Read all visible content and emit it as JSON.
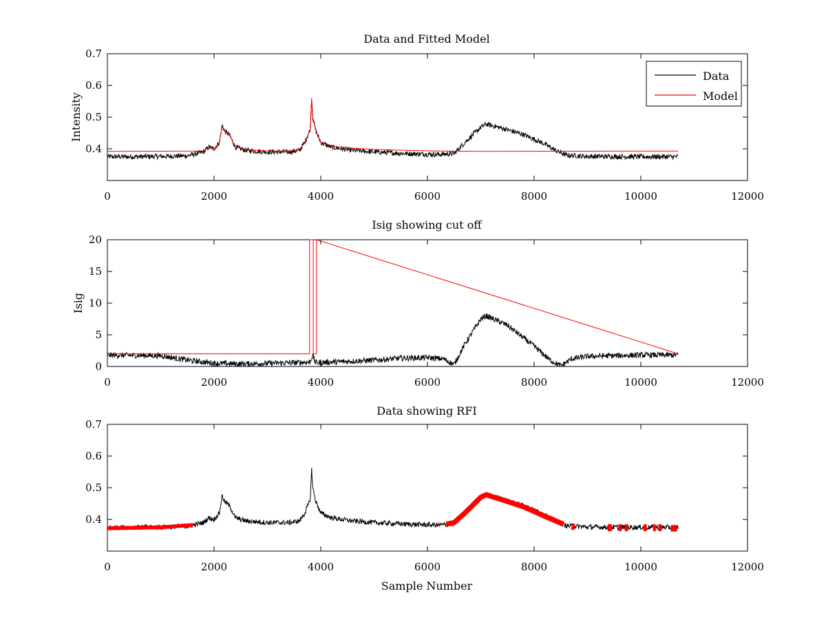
{
  "chart_data": [
    {
      "type": "line",
      "title": "Data and Fitted Model",
      "xlabel": "",
      "ylabel": "Intensity",
      "xlim": [
        0,
        12000
      ],
      "ylim": [
        0.3,
        0.7
      ],
      "xticks": [
        "0",
        "2000",
        "4000",
        "6000",
        "8000",
        "10000",
        "12000"
      ],
      "yticks": [
        "0.4",
        "0.5",
        "0.6",
        "0.7"
      ],
      "ytick_values": [
        0.4,
        0.5,
        0.6,
        0.7
      ],
      "grid": false,
      "legend_position": "top-right",
      "legend": [
        {
          "label": "Data",
          "color": "#000000"
        },
        {
          "label": "Model",
          "color": "#ff0000"
        }
      ],
      "series": [
        {
          "name": "Data",
          "color": "#000000",
          "noise": 0.008,
          "x": [
            0,
            500,
            1000,
            1500,
            1800,
            1900,
            2000,
            2100,
            2150,
            2200,
            2250,
            2300,
            2400,
            2600,
            3000,
            3400,
            3600,
            3700,
            3750,
            3800,
            3830,
            3850,
            3900,
            4000,
            4200,
            4600,
            5000,
            5600,
            6200,
            6500,
            6700,
            7000,
            7100,
            7400,
            7800,
            8200,
            8400,
            8600,
            9000,
            10000,
            10700
          ],
          "y": [
            0.375,
            0.375,
            0.376,
            0.378,
            0.39,
            0.405,
            0.4,
            0.42,
            0.475,
            0.455,
            0.45,
            0.44,
            0.405,
            0.395,
            0.39,
            0.39,
            0.395,
            0.42,
            0.44,
            0.46,
            0.56,
            0.5,
            0.46,
            0.42,
            0.405,
            0.395,
            0.39,
            0.385,
            0.382,
            0.385,
            0.42,
            0.468,
            0.478,
            0.465,
            0.445,
            0.415,
            0.395,
            0.38,
            0.376,
            0.375,
            0.375
          ]
        },
        {
          "name": "Model",
          "color": "#ff0000",
          "noise": 0,
          "x": [
            0,
            1800,
            1900,
            2000,
            2100,
            2150,
            2200,
            2250,
            2300,
            2400,
            2600,
            3000,
            3400,
            3600,
            3700,
            3750,
            3800,
            3830,
            3850,
            3900,
            4000,
            4200,
            4600,
            5000,
            5600,
            6200,
            7000,
            10700
          ],
          "y": [
            0.392,
            0.393,
            0.405,
            0.4,
            0.42,
            0.47,
            0.455,
            0.45,
            0.44,
            0.405,
            0.397,
            0.393,
            0.393,
            0.397,
            0.42,
            0.44,
            0.46,
            0.56,
            0.5,
            0.46,
            0.42,
            0.408,
            0.402,
            0.398,
            0.395,
            0.393,
            0.392,
            0.393
          ]
        }
      ]
    },
    {
      "type": "line",
      "title": "Isig showing cut off",
      "xlabel": "",
      "ylabel": "Isig",
      "xlim": [
        0,
        12000
      ],
      "ylim": [
        0,
        20
      ],
      "xticks": [
        "0",
        "2000",
        "4000",
        "6000",
        "8000",
        "10000",
        "12000"
      ],
      "yticks": [
        "0",
        "5",
        "10",
        "15",
        "20"
      ],
      "ytick_values": [
        0,
        5,
        10,
        15,
        20
      ],
      "grid": false,
      "series": [
        {
          "color": "#000000",
          "noise": 0.45,
          "x": [
            0,
            1000,
            1500,
            2000,
            2500,
            3000,
            3500,
            3800,
            3850,
            3900,
            4500,
            5000,
            5500,
            6000,
            6300,
            6500,
            6700,
            7000,
            7100,
            7500,
            8000,
            8300,
            8500,
            8700,
            9000,
            10000,
            10700
          ],
          "y": [
            1.8,
            1.7,
            1.0,
            0.5,
            0.4,
            0.5,
            0.6,
            0.7,
            1.8,
            0.6,
            0.8,
            1.0,
            1.3,
            1.4,
            1.2,
            0.3,
            3.5,
            7.5,
            8.0,
            6.5,
            3.2,
            1.0,
            0.1,
            1.2,
            1.6,
            1.8,
            1.8
          ]
        },
        {
          "color": "#ff0000",
          "noise": 0,
          "x": [
            0,
            3790,
            3790,
            3860,
            3860,
            3920,
            3920,
            10700
          ],
          "y": [
            2,
            2,
            20,
            20,
            2,
            2,
            20,
            2
          ]
        }
      ]
    },
    {
      "type": "line",
      "title": "Data showing RFI",
      "xlabel": "Sample Number",
      "ylabel": "",
      "xlim": [
        0,
        12000
      ],
      "ylim": [
        0.3,
        0.7
      ],
      "xticks": [
        "0",
        "2000",
        "4000",
        "6000",
        "8000",
        "10000",
        "12000"
      ],
      "yticks": [
        "0.4",
        "0.5",
        "0.6",
        "0.7"
      ],
      "ytick_values": [
        0.4,
        0.5,
        0.6,
        0.7
      ],
      "grid": false,
      "series": [
        {
          "color": "#000000",
          "noise": 0.008,
          "x": [
            0,
            500,
            1000,
            1500,
            1800,
            1900,
            2000,
            2100,
            2150,
            2200,
            2250,
            2300,
            2400,
            2600,
            3000,
            3400,
            3600,
            3700,
            3750,
            3800,
            3830,
            3850,
            3900,
            4000,
            4200,
            4600,
            5000,
            5600,
            6200,
            6500,
            6700,
            7000,
            7100,
            7400,
            7800,
            8200,
            8400,
            8600,
            9000,
            10000,
            10700
          ],
          "y": [
            0.375,
            0.375,
            0.376,
            0.378,
            0.39,
            0.405,
            0.4,
            0.42,
            0.475,
            0.455,
            0.45,
            0.44,
            0.405,
            0.395,
            0.39,
            0.39,
            0.395,
            0.42,
            0.44,
            0.46,
            0.56,
            0.5,
            0.46,
            0.42,
            0.405,
            0.395,
            0.39,
            0.385,
            0.382,
            0.385,
            0.42,
            0.468,
            0.478,
            0.465,
            0.445,
            0.415,
            0.395,
            0.38,
            0.376,
            0.375,
            0.375
          ]
        }
      ],
      "highlight_segments": [
        {
          "color": "#ff0000",
          "x": [
            0,
            300,
            600,
            1000,
            1400,
            1600
          ],
          "y": [
            0.372,
            0.373,
            0.374,
            0.375,
            0.38,
            0.382
          ],
          "thickness": 0.012
        },
        {
          "color": "#ff0000",
          "x": [
            6350,
            6500,
            6700,
            7000,
            7100,
            7400,
            7800,
            8200,
            8550
          ],
          "y": [
            0.385,
            0.39,
            0.42,
            0.47,
            0.478,
            0.462,
            0.44,
            0.41,
            0.385
          ],
          "thickness": 0.016
        },
        {
          "color": "#ff0000",
          "x": [
            8700,
            8760
          ],
          "y": [
            0.378,
            0.376
          ],
          "thickness": 0.02
        },
        {
          "color": "#ff0000",
          "x": [
            9380,
            9460
          ],
          "y": [
            0.374,
            0.374
          ],
          "thickness": 0.022
        },
        {
          "color": "#ff0000",
          "x": [
            9580,
            9640
          ],
          "y": [
            0.374,
            0.374
          ],
          "thickness": 0.022
        },
        {
          "color": "#ff0000",
          "x": [
            9700,
            9760
          ],
          "y": [
            0.374,
            0.374
          ],
          "thickness": 0.022
        },
        {
          "color": "#ff0000",
          "x": [
            10050,
            10110
          ],
          "y": [
            0.374,
            0.374
          ],
          "thickness": 0.022
        },
        {
          "color": "#ff0000",
          "x": [
            10230,
            10280
          ],
          "y": [
            0.374,
            0.374
          ],
          "thickness": 0.022
        },
        {
          "color": "#ff0000",
          "x": [
            10330,
            10390
          ],
          "y": [
            0.374,
            0.374
          ],
          "thickness": 0.022
        },
        {
          "color": "#ff0000",
          "x": [
            10560,
            10680
          ],
          "y": [
            0.372,
            0.372
          ],
          "thickness": 0.02
        }
      ]
    }
  ]
}
